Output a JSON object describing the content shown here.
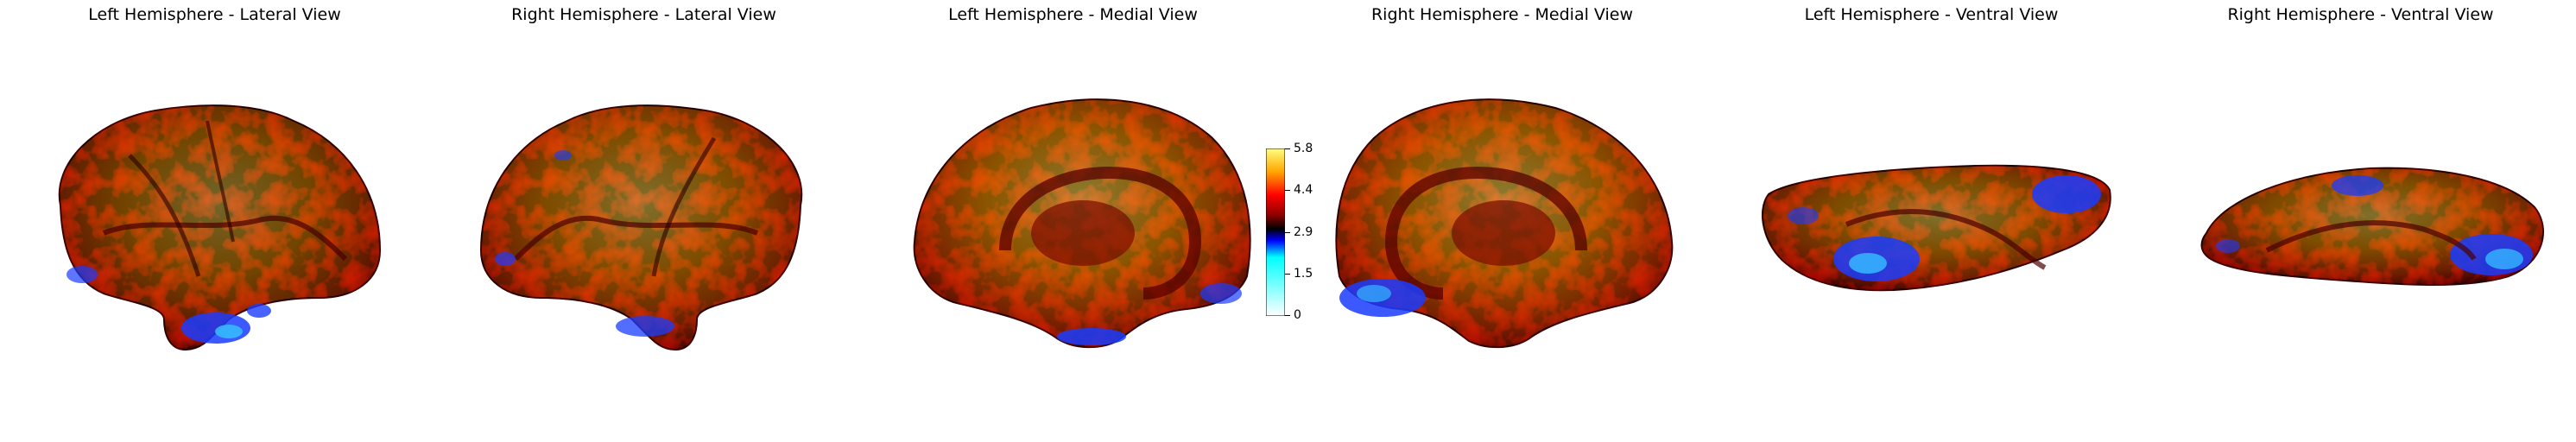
{
  "panels": [
    {
      "title": "Left Hemisphere - Lateral View"
    },
    {
      "title": "Right Hemisphere - Lateral View"
    },
    {
      "title": "Left Hemisphere - Medial View"
    },
    {
      "title": "Right Hemisphere - Medial View"
    },
    {
      "title": "Left Hemisphere - Ventral View"
    },
    {
      "title": "Right Hemisphere - Ventral View"
    }
  ],
  "colorbar": {
    "ticks": [
      "5.8",
      "4.4",
      "2.9",
      "1.5",
      "0"
    ],
    "colormap": [
      "#000000",
      "#00ffff",
      "#0000ff",
      "#000000",
      "#8b0000",
      "#ff0000",
      "#ffa500",
      "#ffff00",
      "#ffffff"
    ]
  },
  "colors": {
    "cortex_base": "#d84a00",
    "cortex_hot": "#ffd000",
    "cortex_dark": "#3a0000",
    "cortex_blue": "#1a3cff",
    "cortex_cyan": "#35b8ff"
  }
}
